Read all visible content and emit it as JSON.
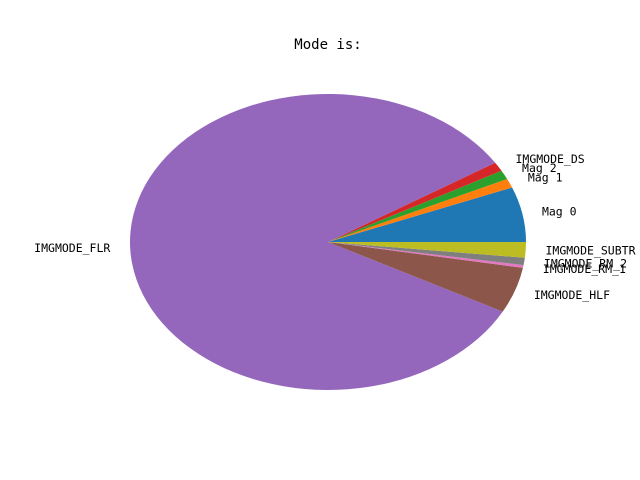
{
  "chart_data": {
    "type": "pie",
    "title": "Mode is:",
    "slices": [
      {
        "label": "Mag  0",
        "value": 6.0,
        "color": "#1f77b4"
      },
      {
        "label": "Mag  1",
        "value": 1.0,
        "color": "#ff7f0e"
      },
      {
        "label": "Mag  2",
        "value": 1.0,
        "color": "#2ca02c"
      },
      {
        "label": "IMGMODE_DS",
        "value": 1.0,
        "color": "#d62728"
      },
      {
        "label": "IMGMODE_FLR",
        "value": 83.2,
        "color": "#9467bd"
      },
      {
        "label": "IMGMODE_HLF",
        "value": 5.0,
        "color": "#8c564b"
      },
      {
        "label": "IMGMODE_RM_1",
        "value": 0.3,
        "color": "#e377c2"
      },
      {
        "label": "IMGMODE_RM_2",
        "value": 0.8,
        "color": "#7f7f7f"
      },
      {
        "label": "IMGMODE_SUBTR",
        "value": 1.7,
        "color": "#bcbd22"
      }
    ],
    "startangle": 0,
    "direction": "counterclockwise"
  }
}
